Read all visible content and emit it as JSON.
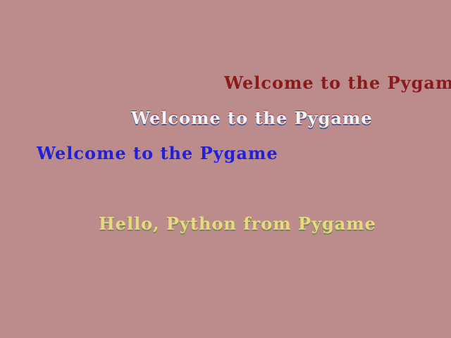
{
  "lines": [
    {
      "text": "Welcome to the Pygame"
    },
    {
      "text": "Welcome to the Pygame"
    },
    {
      "text": "Welcome to the Pygame"
    },
    {
      "text": "Hello, Python from Pygame"
    }
  ]
}
